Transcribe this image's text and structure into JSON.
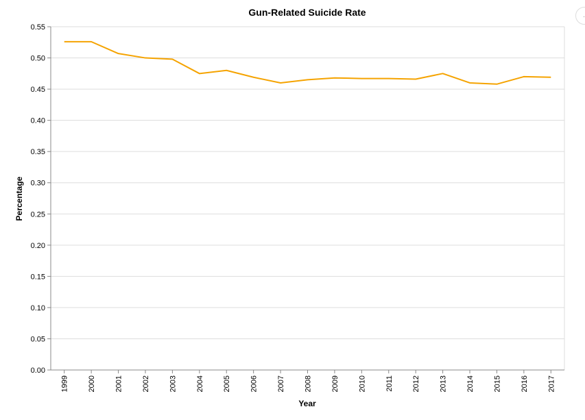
{
  "chart_data": {
    "type": "line",
    "title": "Gun-Related Suicide Rate",
    "xlabel": "Year",
    "ylabel": "Percentage",
    "x": [
      "1999",
      "2000",
      "2001",
      "2002",
      "2003",
      "2004",
      "2005",
      "2006",
      "2007",
      "2008",
      "2009",
      "2010",
      "2011",
      "2012",
      "2013",
      "2014",
      "2015",
      "2016",
      "2017"
    ],
    "series": [
      {
        "values": [
          0.526,
          0.526,
          0.507,
          0.5,
          0.498,
          0.475,
          0.48,
          0.469,
          0.46,
          0.465,
          0.468,
          0.467,
          0.467,
          0.466,
          0.475,
          0.46,
          0.458,
          0.47,
          0.469
        ],
        "color": "#f5a300"
      }
    ],
    "yticks": [
      "0.00",
      "0.05",
      "0.10",
      "0.15",
      "0.20",
      "0.25",
      "0.30",
      "0.35",
      "0.40",
      "0.45",
      "0.50",
      "0.55"
    ],
    "ylim": [
      0,
      0.55
    ],
    "grid": true
  },
  "actions_icon": "ellipsis-icon"
}
